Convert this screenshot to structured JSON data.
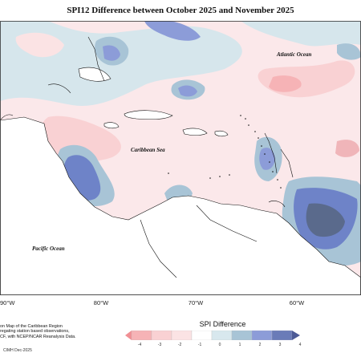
{
  "map": {
    "title": "SPI12 Difference between October 2025 and November 2025",
    "labels": {
      "atlantic": "Atlantic Ocean",
      "caribbean": "Caribbean Sea",
      "pacific": "Pacific Ocean"
    },
    "longitudes": [
      "90°W",
      "80°W",
      "70°W",
      "60°W"
    ]
  },
  "legend": {
    "title": "SPI Difference",
    "ticks": [
      "-4",
      "-3",
      "-2",
      "-1",
      "0",
      "1",
      "2",
      "3",
      "4"
    ],
    "colors": [
      "#f08f94",
      "#f6b3b6",
      "#f9d1d3",
      "#fbe3e4",
      "#ffffff",
      "#d8e8ee",
      "#a8c4d6",
      "#8c9cd8",
      "#6a7bb8",
      "#4c5a96"
    ]
  },
  "credit": {
    "lines": [
      "on Map of the Caribbean Region",
      "regating station based observations,",
      "CF, with NCEP/NCAR Reanalysis Data."
    ],
    "footer": "CIMH Dec-2025"
  }
}
